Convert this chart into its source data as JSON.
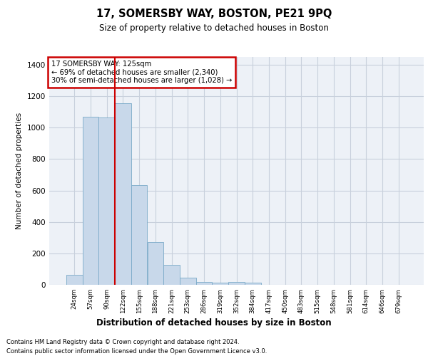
{
  "title": "17, SOMERSBY WAY, BOSTON, PE21 9PQ",
  "subtitle": "Size of property relative to detached houses in Boston",
  "xlabel": "Distribution of detached houses by size in Boston",
  "ylabel": "Number of detached properties",
  "footer_line1": "Contains HM Land Registry data © Crown copyright and database right 2024.",
  "footer_line2": "Contains public sector information licensed under the Open Government Licence v3.0.",
  "annotation_line1": "17 SOMERSBY WAY: 125sqm",
  "annotation_line2": "← 69% of detached houses are smaller (2,340)",
  "annotation_line3": "30% of semi-detached houses are larger (1,028) →",
  "bar_color": "#c8d8ea",
  "bar_edge_color": "#7aaac8",
  "grid_color": "#c8d0dc",
  "bg_color": "#edf1f7",
  "vline_color": "#cc0000",
  "annotation_box_edge": "#cc0000",
  "categories": [
    "24sqm",
    "57sqm",
    "90sqm",
    "122sqm",
    "155sqm",
    "188sqm",
    "221sqm",
    "253sqm",
    "286sqm",
    "319sqm",
    "352sqm",
    "384sqm",
    "417sqm",
    "450sqm",
    "483sqm",
    "515sqm",
    "548sqm",
    "581sqm",
    "614sqm",
    "646sqm",
    "679sqm"
  ],
  "values": [
    65,
    1070,
    1065,
    1155,
    635,
    270,
    125,
    47,
    20,
    12,
    20,
    12,
    0,
    0,
    0,
    0,
    0,
    0,
    0,
    0,
    0
  ],
  "ylim": [
    0,
    1450
  ],
  "yticks": [
    0,
    200,
    400,
    600,
    800,
    1000,
    1200,
    1400
  ],
  "vline_index": 3
}
